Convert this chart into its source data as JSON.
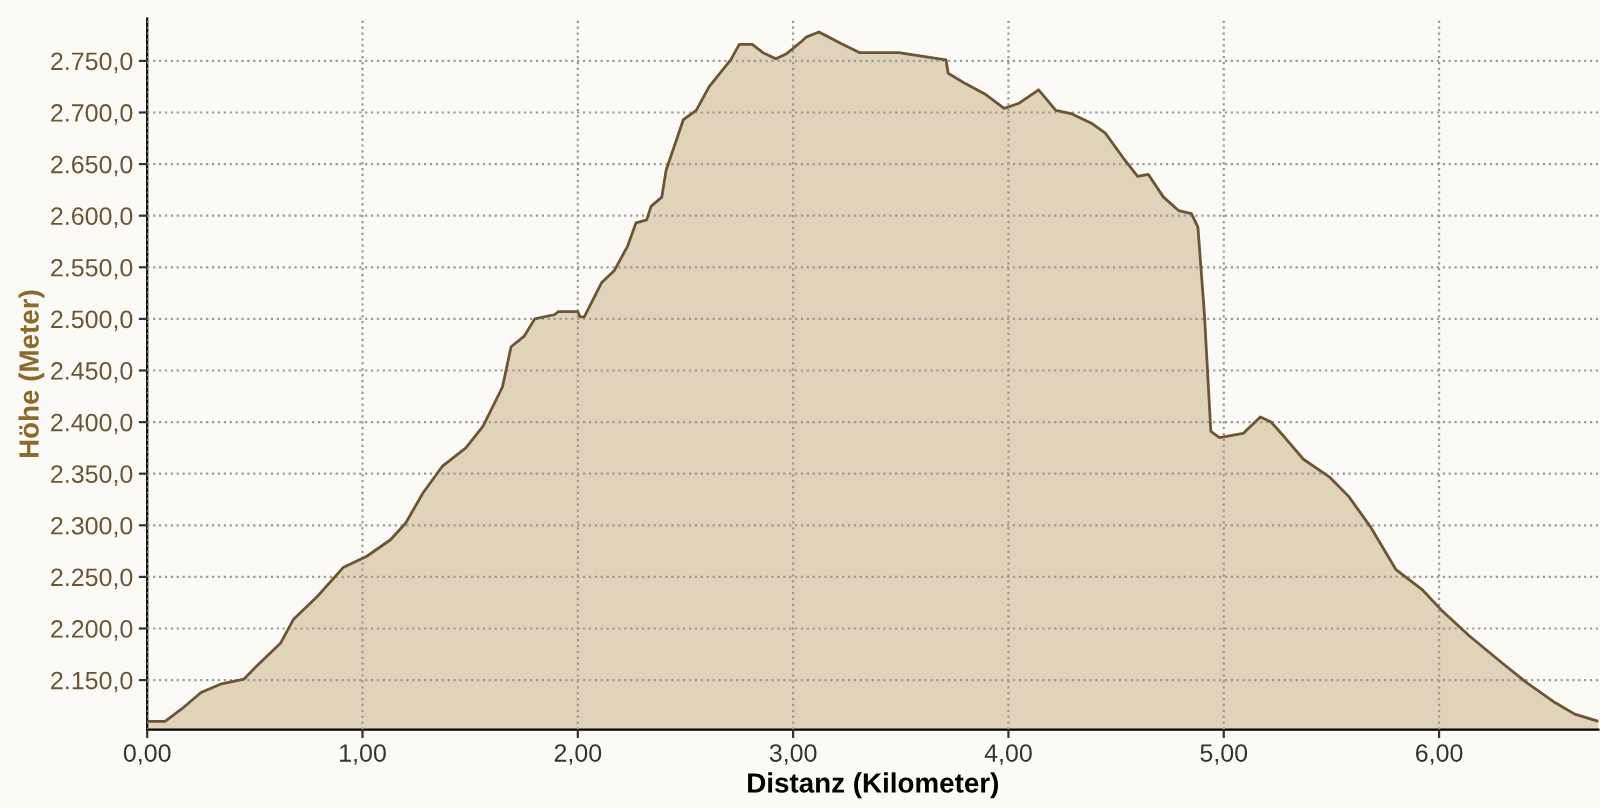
{
  "chart_data": {
    "type": "area",
    "xlabel": "Distanz (Kilometer)",
    "ylabel": "Höhe (Meter)",
    "x": [
      0,
      0.083,
      0.16,
      0.25,
      0.34,
      0.45,
      0.51,
      0.62,
      0.68,
      0.79,
      0.91,
      1.02,
      1.13,
      1.2,
      1.28,
      1.37,
      1.48,
      1.56,
      1.65,
      1.69,
      1.75,
      1.8,
      1.89,
      1.91,
      2.0,
      2.01,
      2.03,
      2.11,
      2.17,
      2.23,
      2.27,
      2.32,
      2.34,
      2.39,
      2.41,
      2.49,
      2.55,
      2.61,
      2.71,
      2.75,
      2.81,
      2.86,
      2.92,
      2.97,
      3.04,
      3.06,
      3.12,
      3.22,
      3.31,
      3.43,
      3.49,
      3.55,
      3.71,
      3.72,
      3.8,
      3.89,
      3.98,
      4.05,
      4.14,
      4.22,
      4.29,
      4.39,
      4.45,
      4.54,
      4.6,
      4.65,
      4.72,
      4.79,
      4.85,
      4.88,
      4.91,
      4.94,
      4.98,
      5.09,
      5.17,
      5.22,
      5.28,
      5.37,
      5.49,
      5.58,
      5.68,
      5.8,
      5.92,
      6.01,
      6.14,
      6.29,
      6.41,
      6.54,
      6.63,
      6.74
    ],
    "series": [
      {
        "color": "#e1d3b9",
        "values": [
          2110,
          2110,
          2122,
          2138,
          2146,
          2151,
          2164,
          2186,
          2209,
          2231,
          2259,
          2270,
          2286,
          2302,
          2331,
          2357,
          2375,
          2396,
          2434,
          2473,
          2483,
          2500,
          2504,
          2507,
          2507,
          2502,
          2502,
          2535,
          2547,
          2570,
          2593,
          2596,
          2609,
          2618,
          2644,
          2693,
          2702,
          2725,
          2751,
          2766,
          2766,
          2758,
          2752,
          2757,
          2769,
          2773,
          2778,
          2767,
          2758,
          2758,
          2758,
          2756,
          2751,
          2738,
          2728,
          2718,
          2704,
          2709,
          2722,
          2702,
          2699,
          2689,
          2680,
          2654,
          2638,
          2640,
          2618,
          2605,
          2602,
          2589,
          2505,
          2391,
          2385,
          2389,
          2405,
          2400,
          2386,
          2364,
          2347,
          2328,
          2299,
          2257,
          2238,
          2218,
          2193,
          2167,
          2147,
          2128,
          2117,
          2110
        ]
      }
    ],
    "xlim": [
      0,
      6.74
    ],
    "ylim": [
      2102,
      2791
    ],
    "xticks": [
      {
        "value": 0,
        "label": "0,00"
      },
      {
        "value": 1,
        "label": "1,00"
      },
      {
        "value": 2,
        "label": "2,00"
      },
      {
        "value": 3,
        "label": "3,00"
      },
      {
        "value": 4,
        "label": "4,00"
      },
      {
        "value": 5,
        "label": "5,00"
      },
      {
        "value": 6,
        "label": "6,00"
      }
    ],
    "yticks": [
      {
        "value": 2150,
        "label": "2.150,0"
      },
      {
        "value": 2200,
        "label": "2.200,0"
      },
      {
        "value": 2250,
        "label": "2.250,0"
      },
      {
        "value": 2300,
        "label": "2.300,0"
      },
      {
        "value": 2350,
        "label": "2.350,0"
      },
      {
        "value": 2400,
        "label": "2.400,0"
      },
      {
        "value": 2450,
        "label": "2.450,0"
      },
      {
        "value": 2500,
        "label": "2.500,0"
      },
      {
        "value": 2550,
        "label": "2.550,0"
      },
      {
        "value": 2600,
        "label": "2.600,0"
      },
      {
        "value": 2650,
        "label": "2.650,0"
      },
      {
        "value": 2700,
        "label": "2.700,0"
      },
      {
        "value": 2750,
        "label": "2.750,0"
      }
    ],
    "grid": true,
    "line_style": "solid",
    "marker": "none"
  }
}
